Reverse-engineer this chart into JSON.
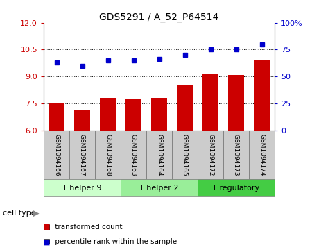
{
  "title": "GDS5291 / A_52_P64514",
  "samples": [
    "GSM1094166",
    "GSM1094167",
    "GSM1094168",
    "GSM1094163",
    "GSM1094164",
    "GSM1094165",
    "GSM1094172",
    "GSM1094173",
    "GSM1094174"
  ],
  "transformed_counts": [
    7.5,
    7.1,
    7.8,
    7.75,
    7.8,
    8.55,
    9.15,
    9.1,
    9.9
  ],
  "percentile_ranks": [
    63,
    60,
    65,
    65,
    66,
    70,
    75,
    75,
    80
  ],
  "bar_color": "#cc0000",
  "dot_color": "#0000cc",
  "left_ylim": [
    6,
    12
  ],
  "left_yticks": [
    6,
    7.5,
    9,
    10.5,
    12
  ],
  "right_ylim": [
    0,
    100
  ],
  "right_yticks": [
    0,
    25,
    50,
    75,
    100
  ],
  "right_yticklabels": [
    "0",
    "25",
    "50",
    "75",
    "100%"
  ],
  "cell_groups": [
    {
      "label": "T helper 9",
      "indices": [
        0,
        1,
        2
      ],
      "color": "#ccffcc"
    },
    {
      "label": "T helper 2",
      "indices": [
        3,
        4,
        5
      ],
      "color": "#99ee99"
    },
    {
      "label": "T regulatory",
      "indices": [
        6,
        7,
        8
      ],
      "color": "#44cc44"
    }
  ],
  "cell_type_label": "cell type",
  "legend_items": [
    {
      "label": "transformed count",
      "color": "#cc0000"
    },
    {
      "label": "percentile rank within the sample",
      "color": "#0000cc"
    }
  ],
  "tick_label_color_left": "#cc0000",
  "tick_label_color_right": "#0000cc",
  "bg_color": "#ffffff",
  "bar_bottom": 6.0,
  "sample_box_color": "#cccccc",
  "grid_yticks": [
    7.5,
    9,
    10.5
  ]
}
